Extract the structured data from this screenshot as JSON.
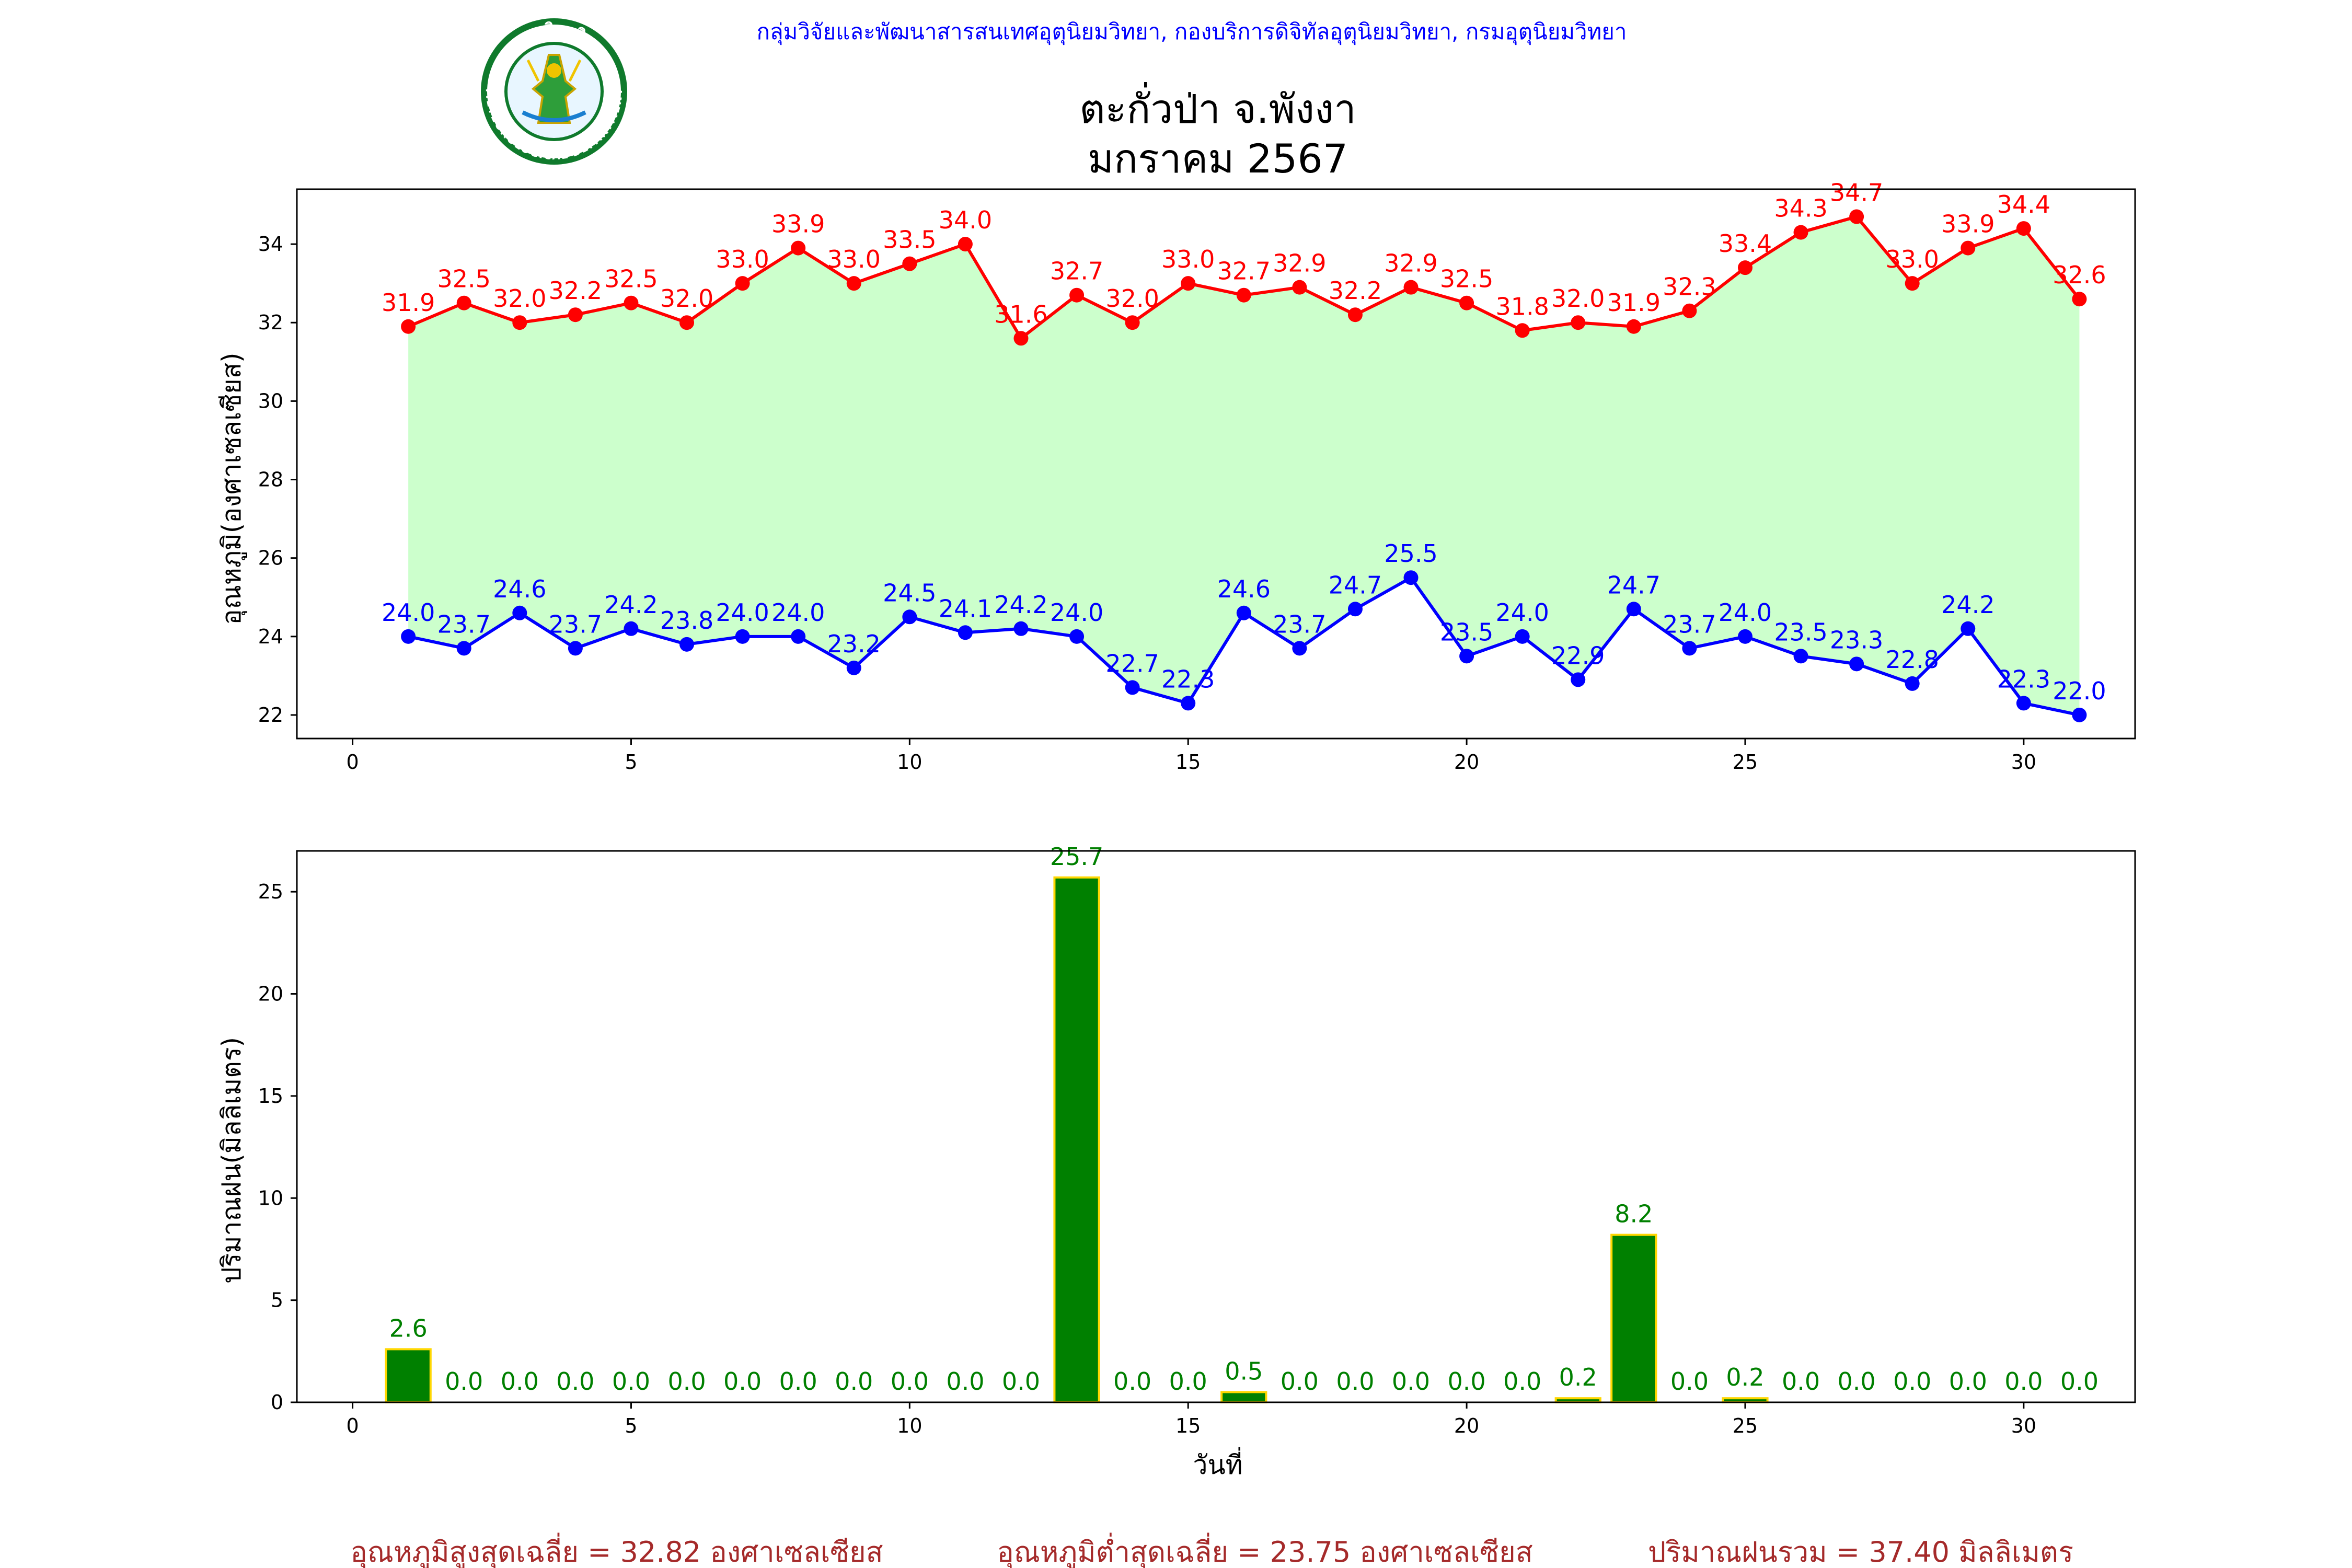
{
  "header": {
    "org_line": "กลุ่มวิจัยและพัฒนาสารสนเทศอุตุนิยมวิทยา, กองบริการดิจิทัลอุตุนิยมวิทยา, กรมอุตุนิยมวิทยา",
    "title_line1": "ตะกั่วป่า จ.พังงา",
    "title_line2": "มกราคม 2567",
    "logo_text_top": "กรมอุตุนิยมวิทยา",
    "logo_text_bottom": "METEOROLOGICAL DEPARTMENT"
  },
  "colors": {
    "max_line": "#ff0000",
    "min_line": "#0000ff",
    "fill_band": "#ccffcc",
    "rain_bar": "#008000",
    "rain_edge": "#ffd700",
    "rain_label": "#008000",
    "footer_text": "#a52a2a",
    "header_text": "#0000ff"
  },
  "chart_data": [
    {
      "type": "line",
      "ylabel": "อุณหภูมิ(องศาเซลเซียส)",
      "xlabel": "",
      "xlim": [
        -1,
        32
      ],
      "ylim": [
        21.4,
        35.4
      ],
      "xticks": [
        0,
        5,
        10,
        15,
        20,
        25,
        30
      ],
      "yticks": [
        22,
        24,
        26,
        28,
        30,
        32,
        34
      ],
      "grid": false,
      "fill_between": true,
      "x": [
        1,
        2,
        3,
        4,
        5,
        6,
        7,
        8,
        9,
        10,
        11,
        12,
        13,
        14,
        15,
        16,
        17,
        18,
        19,
        20,
        21,
        22,
        23,
        24,
        25,
        26,
        27,
        28,
        29,
        30,
        31
      ],
      "series": [
        {
          "key": "max",
          "values": [
            31.9,
            32.5,
            32.0,
            32.2,
            32.5,
            32.0,
            33.0,
            33.9,
            33.0,
            33.5,
            34.0,
            31.6,
            32.7,
            32.0,
            33.0,
            32.7,
            32.9,
            32.2,
            32.9,
            32.5,
            31.8,
            32.0,
            31.9,
            32.3,
            33.4,
            34.3,
            34.7,
            33.0,
            33.9,
            34.4,
            32.6
          ]
        },
        {
          "key": "min",
          "values": [
            24.0,
            23.7,
            24.6,
            23.7,
            24.2,
            23.8,
            24.0,
            24.0,
            23.2,
            24.5,
            24.1,
            24.2,
            24.0,
            22.7,
            22.3,
            24.6,
            23.7,
            24.7,
            25.5,
            23.5,
            24.0,
            22.9,
            24.7,
            23.7,
            24.0,
            23.5,
            23.3,
            22.8,
            24.2,
            22.3,
            22.0
          ]
        }
      ]
    },
    {
      "type": "bar",
      "ylabel": "ปริมาณฝน(มิลลิเมตร)",
      "xlabel": "วันที่",
      "xlim": [
        -1,
        32
      ],
      "ylim": [
        0,
        27
      ],
      "xticks": [
        0,
        5,
        10,
        15,
        20,
        25,
        30
      ],
      "yticks": [
        0,
        5,
        10,
        15,
        20,
        25
      ],
      "grid": false,
      "x": [
        1,
        2,
        3,
        4,
        5,
        6,
        7,
        8,
        9,
        10,
        11,
        12,
        13,
        14,
        15,
        16,
        17,
        18,
        19,
        20,
        21,
        22,
        23,
        24,
        25,
        26,
        27,
        28,
        29,
        30,
        31
      ],
      "values": [
        2.6,
        0.0,
        0.0,
        0.0,
        0.0,
        0.0,
        0.0,
        0.0,
        0.0,
        0.0,
        0.0,
        0.0,
        25.7,
        0.0,
        0.0,
        0.5,
        0.0,
        0.0,
        0.0,
        0.0,
        0.0,
        0.2,
        8.2,
        0.0,
        0.2,
        0.0,
        0.0,
        0.0,
        0.0,
        0.0,
        0.0
      ]
    }
  ],
  "footer": {
    "avg_max": "อุณหภูมิสูงสุดเฉลี่ย = 32.82 องศาเซลเซียส",
    "avg_min": "อุณหภูมิต่ำสุดเฉลี่ย = 23.75 องศาเซลเซียส",
    "total_rain": "ปริมาณฝนรวม = 37.40 มิลลิเมตร"
  }
}
